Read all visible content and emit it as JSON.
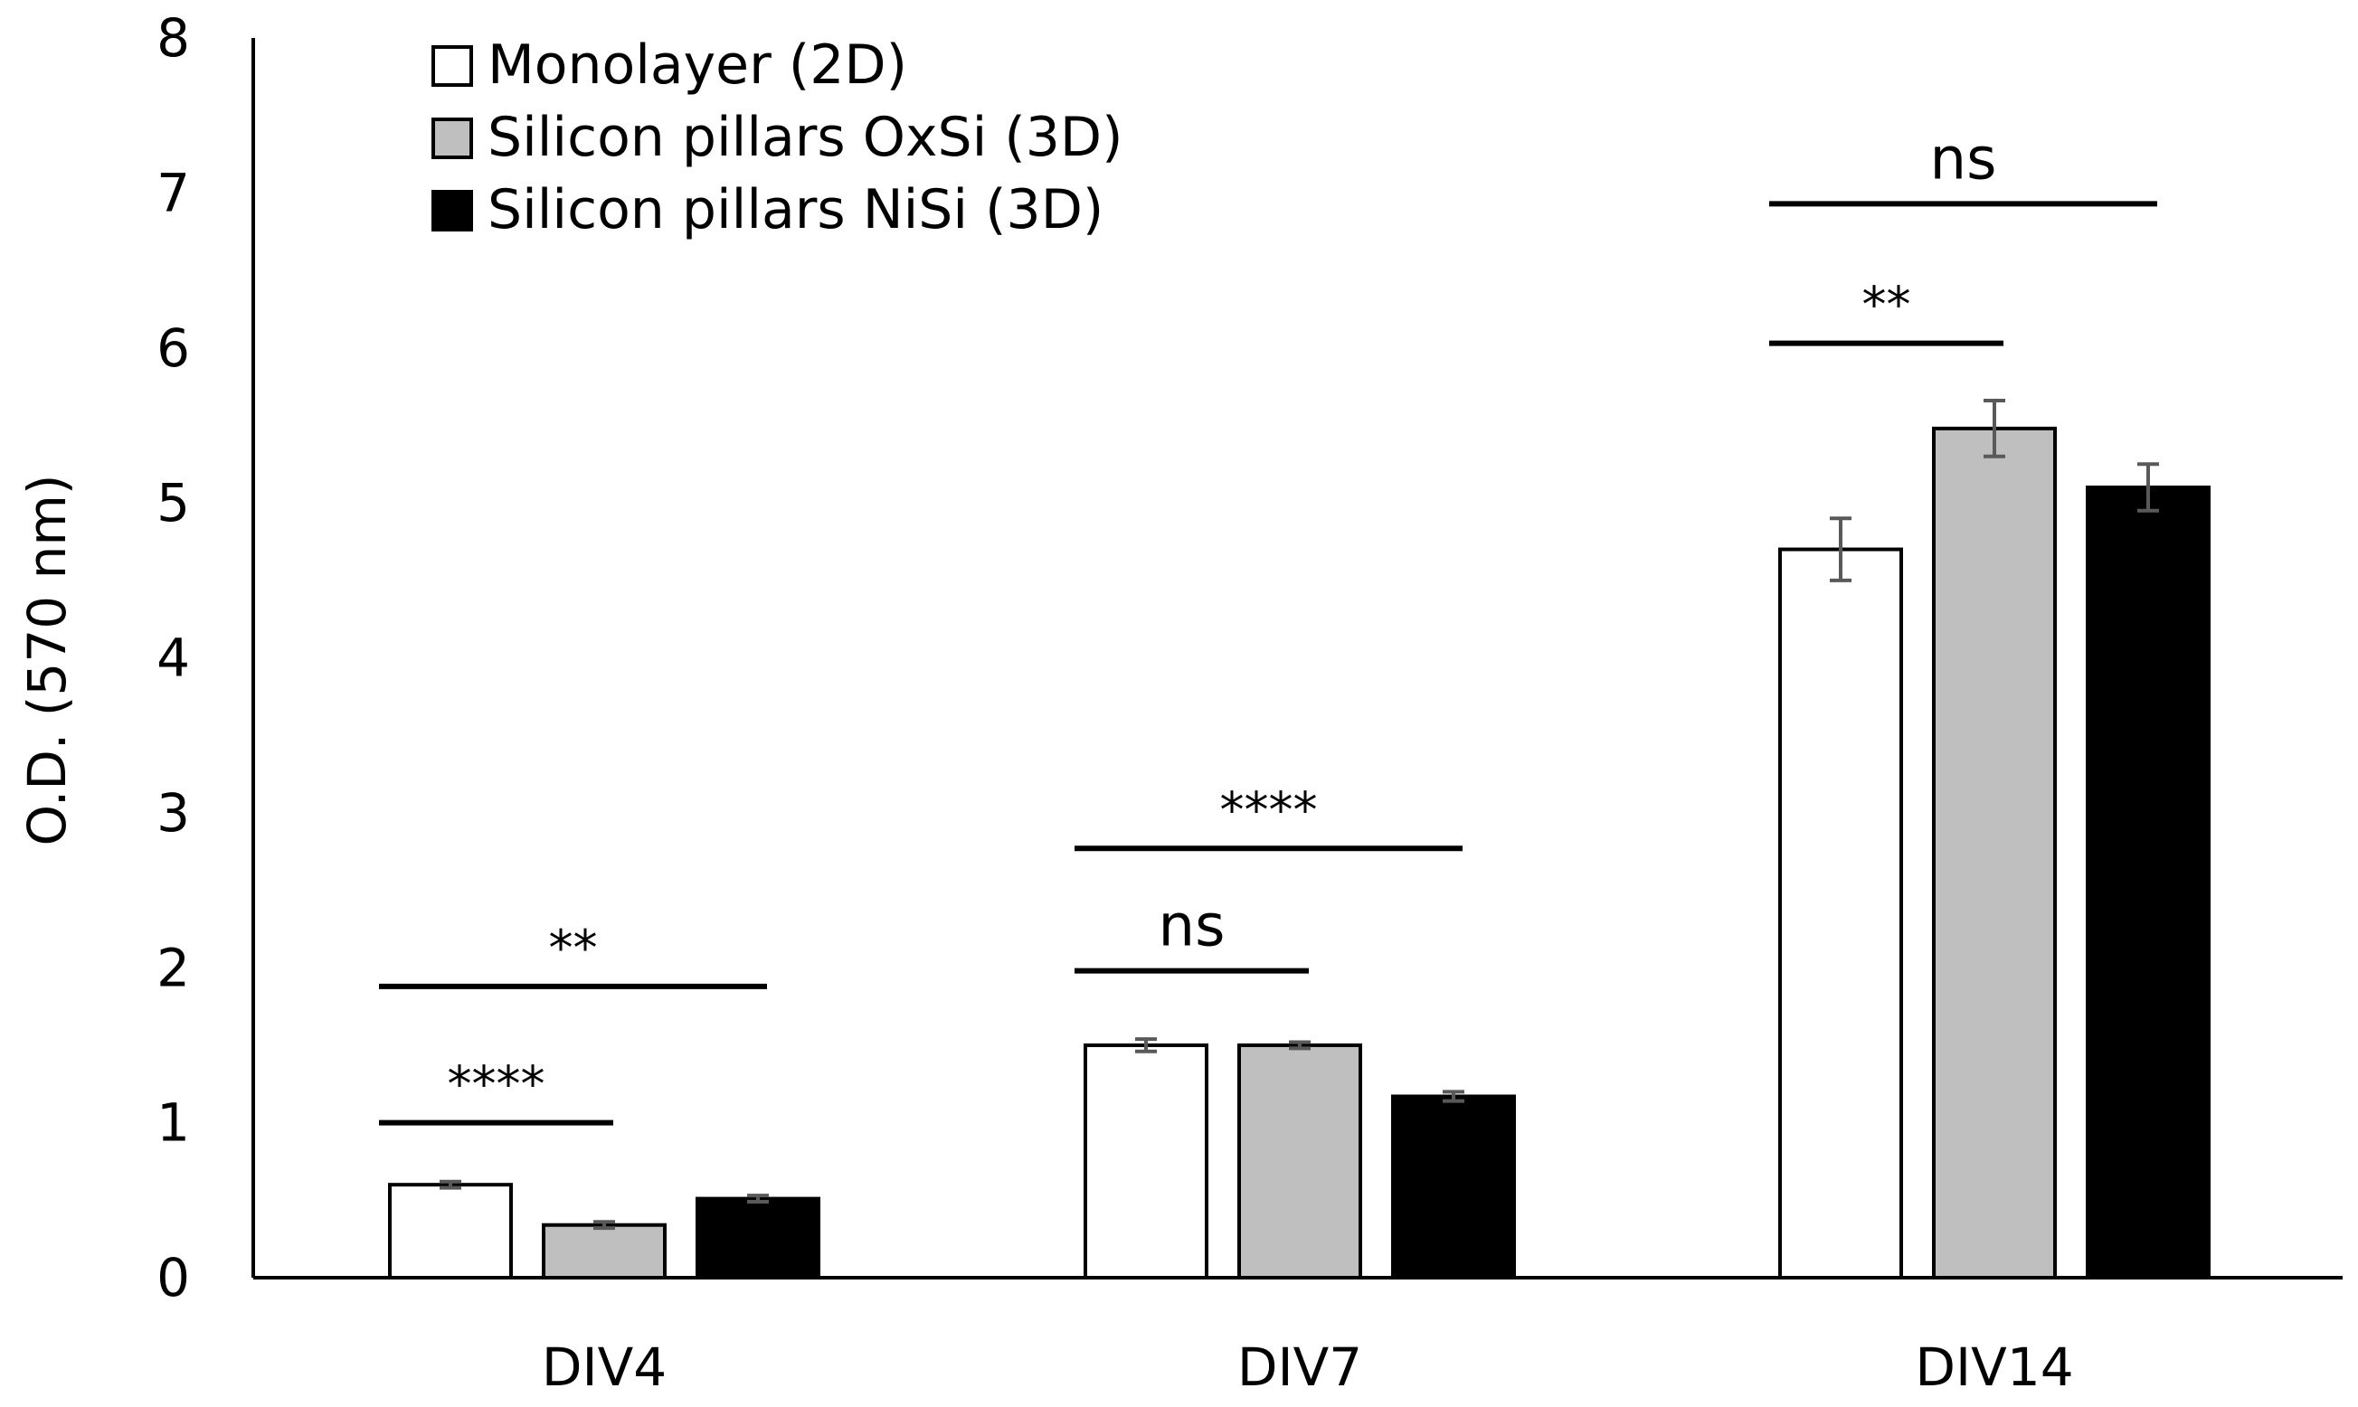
{
  "chart_data": {
    "type": "bar",
    "title": "",
    "xlabel": "",
    "ylabel": "O.D. (570 nm)",
    "ylim": [
      0,
      8
    ],
    "yticks": [
      "0",
      "1",
      "2",
      "3",
      "4",
      "5",
      "6",
      "7",
      "8"
    ],
    "categories": [
      "DIV4",
      "DIV7",
      "DIV14"
    ],
    "series": [
      {
        "name": "Monolayer (2D)",
        "color": "#ffffff",
        "values": [
          0.6,
          1.5,
          4.7
        ],
        "errors": [
          0.02,
          0.04,
          0.2
        ]
      },
      {
        "name": "Silicon pillars OxSi (3D)",
        "color": "#bfbfbf",
        "values": [
          0.34,
          1.5,
          5.48
        ],
        "errors": [
          0.02,
          0.02,
          0.18
        ]
      },
      {
        "name": "Silicon pillars NiSi (3D)",
        "color": "#000000",
        "values": [
          0.51,
          1.17,
          5.1
        ],
        "errors": [
          0.02,
          0.03,
          0.15
        ]
      }
    ],
    "legend_position": "top-left",
    "significance": [
      {
        "category": "DIV4",
        "from_series": 0,
        "to_series": 1,
        "label": "****",
        "level": 1.0
      },
      {
        "category": "DIV4",
        "from_series": 0,
        "to_series": 2,
        "label": "**",
        "level": 1.88
      },
      {
        "category": "DIV7",
        "from_series": 0,
        "to_series": 1,
        "label": "ns",
        "level": 1.98
      },
      {
        "category": "DIV7",
        "from_series": 0,
        "to_series": 2,
        "label": "****",
        "level": 2.77
      },
      {
        "category": "DIV14",
        "from_series": 0,
        "to_series": 1,
        "label": "**",
        "level": 6.03
      },
      {
        "category": "DIV14",
        "from_series": 0,
        "to_series": 2,
        "label": "ns",
        "level": 6.93
      }
    ]
  }
}
